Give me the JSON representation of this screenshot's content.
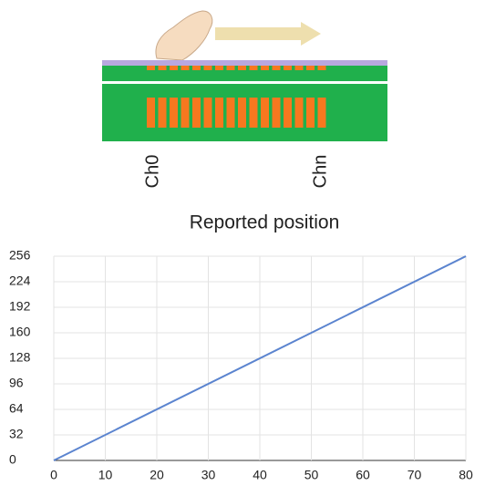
{
  "diagram": {
    "labels": [
      "Ch0",
      "Chn"
    ]
  },
  "chart_data": {
    "type": "line",
    "title": "Reported position",
    "x": [
      0,
      80
    ],
    "series": [
      {
        "color": "#5b84cf",
        "values": [
          0,
          256
        ]
      }
    ],
    "xlim": [
      0,
      80
    ],
    "xticks": [
      0,
      10,
      20,
      30,
      40,
      50,
      60,
      70,
      80
    ],
    "ylim": [
      0,
      256
    ],
    "yticks": [
      0,
      32,
      64,
      96,
      128,
      160,
      192,
      224,
      256
    ],
    "grid": true
  }
}
